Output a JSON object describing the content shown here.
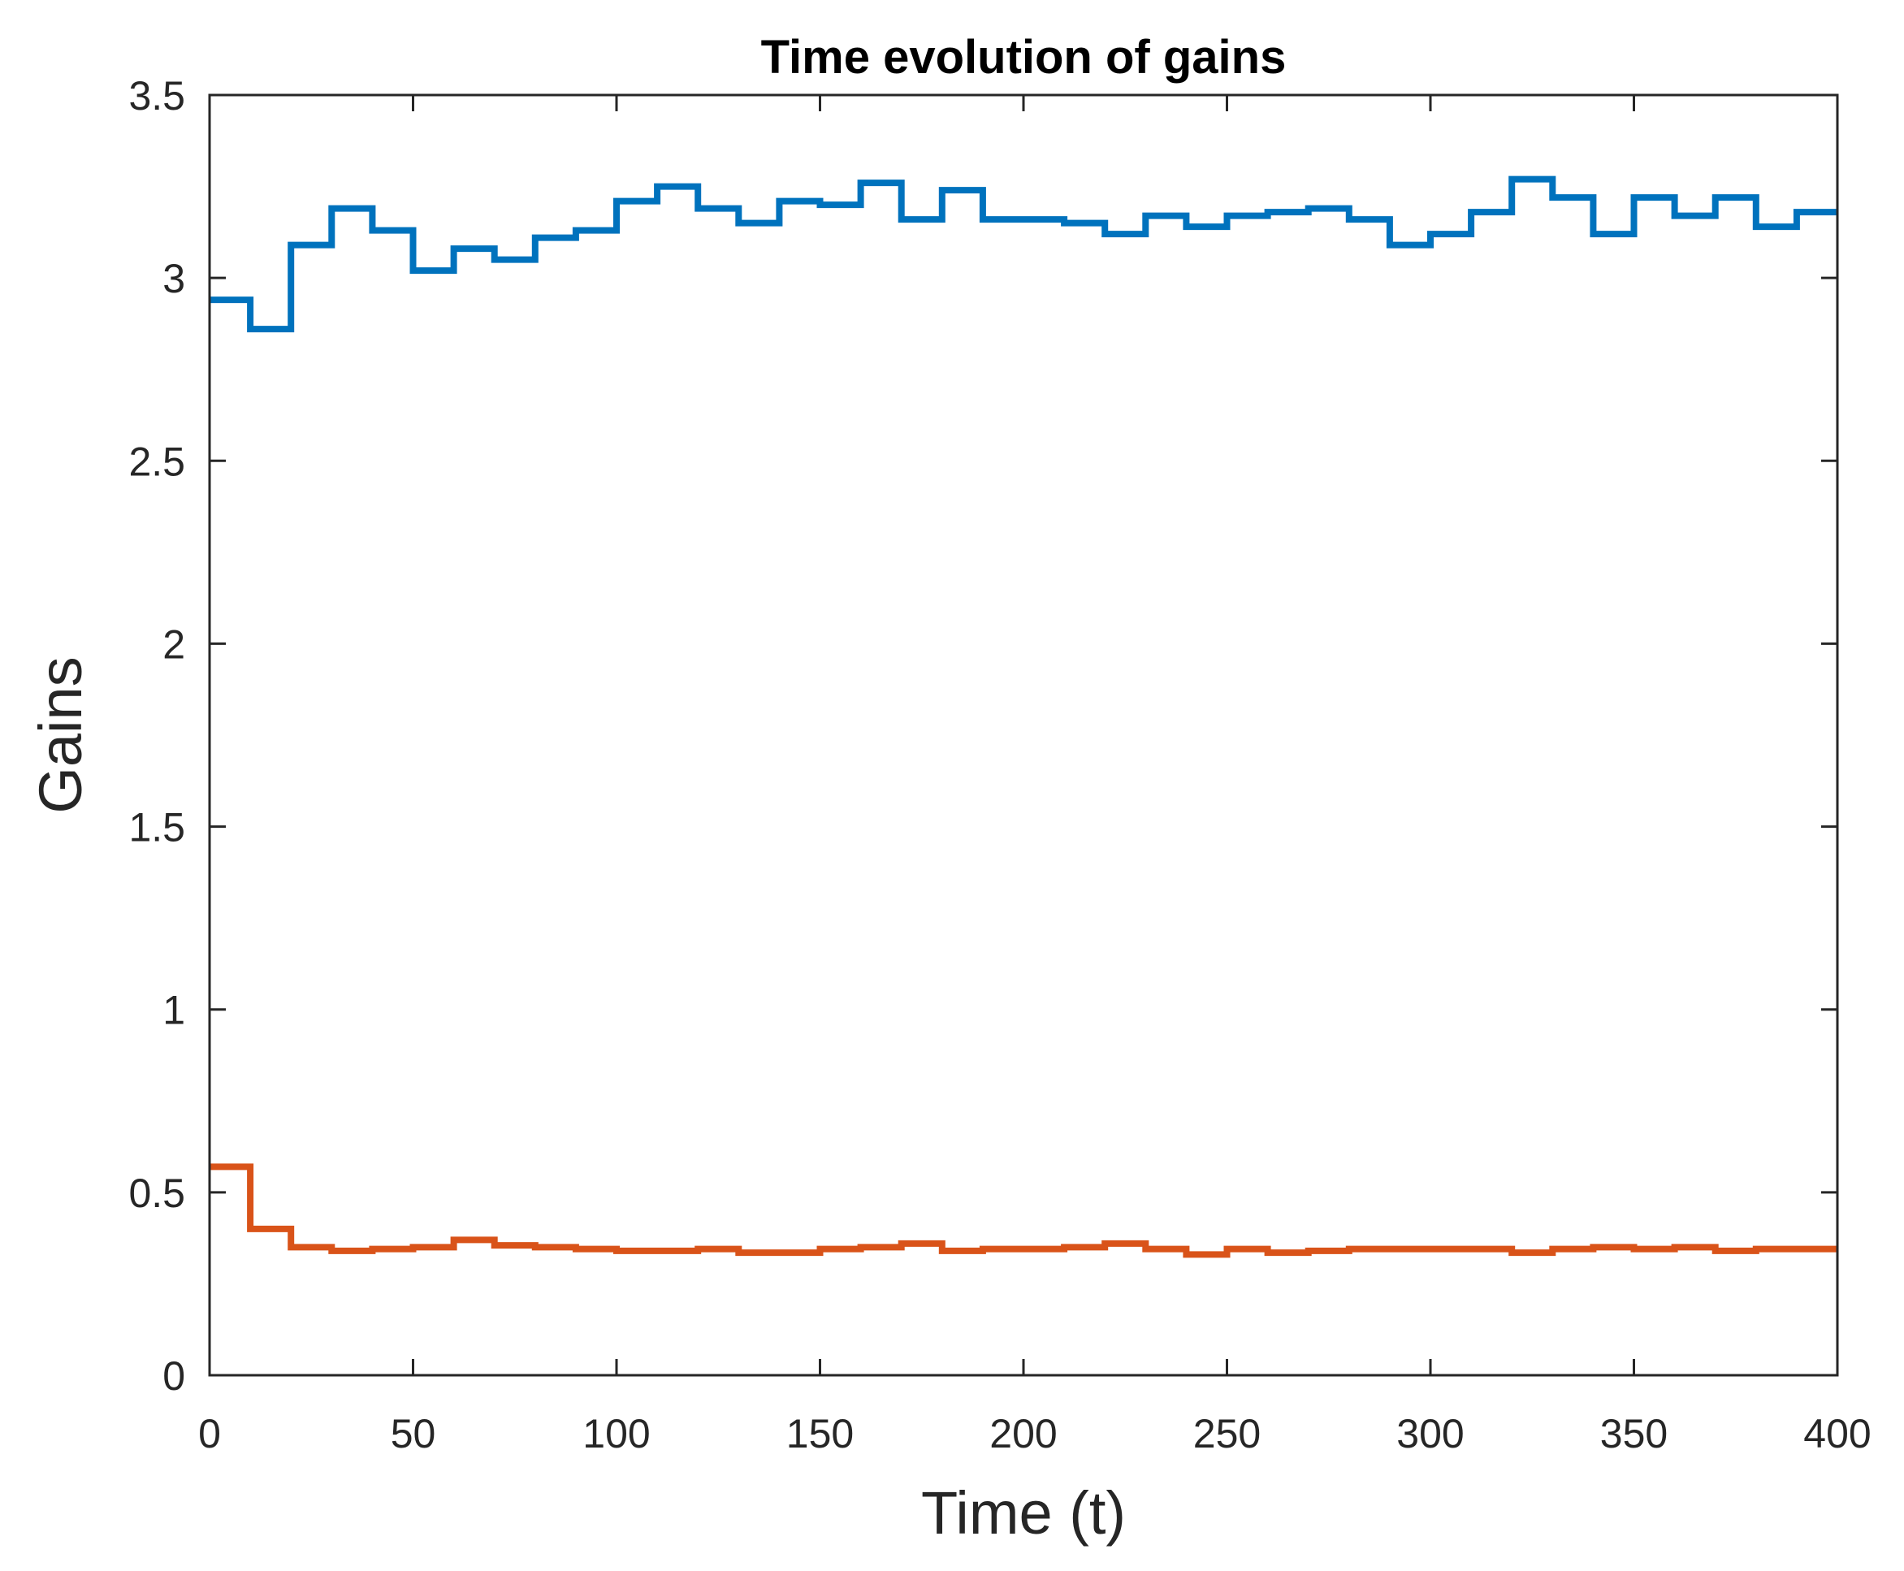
{
  "chart_data": {
    "type": "line",
    "step": true,
    "title": "Time evolution of gains",
    "xlabel": "Time (t)",
    "ylabel": "Gains",
    "xlim": [
      0,
      400
    ],
    "ylim": [
      0,
      3.5
    ],
    "xticks": [
      0,
      50,
      100,
      150,
      200,
      250,
      300,
      350,
      400
    ],
    "xtick_labels": [
      "0",
      "50",
      "100",
      "150",
      "200",
      "250",
      "300",
      "350",
      "400"
    ],
    "yticks": [
      0,
      0.5,
      1,
      1.5,
      2,
      2.5,
      3,
      3.5
    ],
    "ytick_labels": [
      "0",
      "0.5",
      "1",
      "1.5",
      "2",
      "2.5",
      "3",
      "3.5"
    ],
    "grid": false,
    "legend": "none",
    "x": [
      0,
      10,
      20,
      30,
      40,
      50,
      60,
      70,
      80,
      90,
      100,
      110,
      120,
      130,
      140,
      150,
      160,
      170,
      180,
      190,
      200,
      210,
      220,
      230,
      240,
      250,
      260,
      270,
      280,
      290,
      300,
      310,
      320,
      330,
      340,
      350,
      360,
      370,
      380,
      390,
      400
    ],
    "series": [
      {
        "color": "#0072BD",
        "values": [
          2.94,
          2.86,
          3.09,
          3.19,
          3.13,
          3.02,
          3.08,
          3.05,
          3.11,
          3.13,
          3.21,
          3.25,
          3.19,
          3.15,
          3.21,
          3.2,
          3.26,
          3.16,
          3.24,
          3.16,
          3.16,
          3.15,
          3.12,
          3.17,
          3.14,
          3.17,
          3.18,
          3.19,
          3.16,
          3.09,
          3.12,
          3.18,
          3.27,
          3.22,
          3.12,
          3.22,
          3.17,
          3.22,
          3.14,
          3.18,
          3.18
        ]
      },
      {
        "color": "#D95319",
        "values": [
          0.57,
          0.4,
          0.35,
          0.34,
          0.345,
          0.35,
          0.37,
          0.355,
          0.35,
          0.345,
          0.34,
          0.34,
          0.345,
          0.335,
          0.335,
          0.345,
          0.35,
          0.36,
          0.34,
          0.345,
          0.345,
          0.35,
          0.36,
          0.345,
          0.33,
          0.345,
          0.335,
          0.34,
          0.345,
          0.345,
          0.345,
          0.345,
          0.335,
          0.345,
          0.35,
          0.345,
          0.35,
          0.34,
          0.345,
          0.345,
          0.345
        ]
      }
    ]
  }
}
